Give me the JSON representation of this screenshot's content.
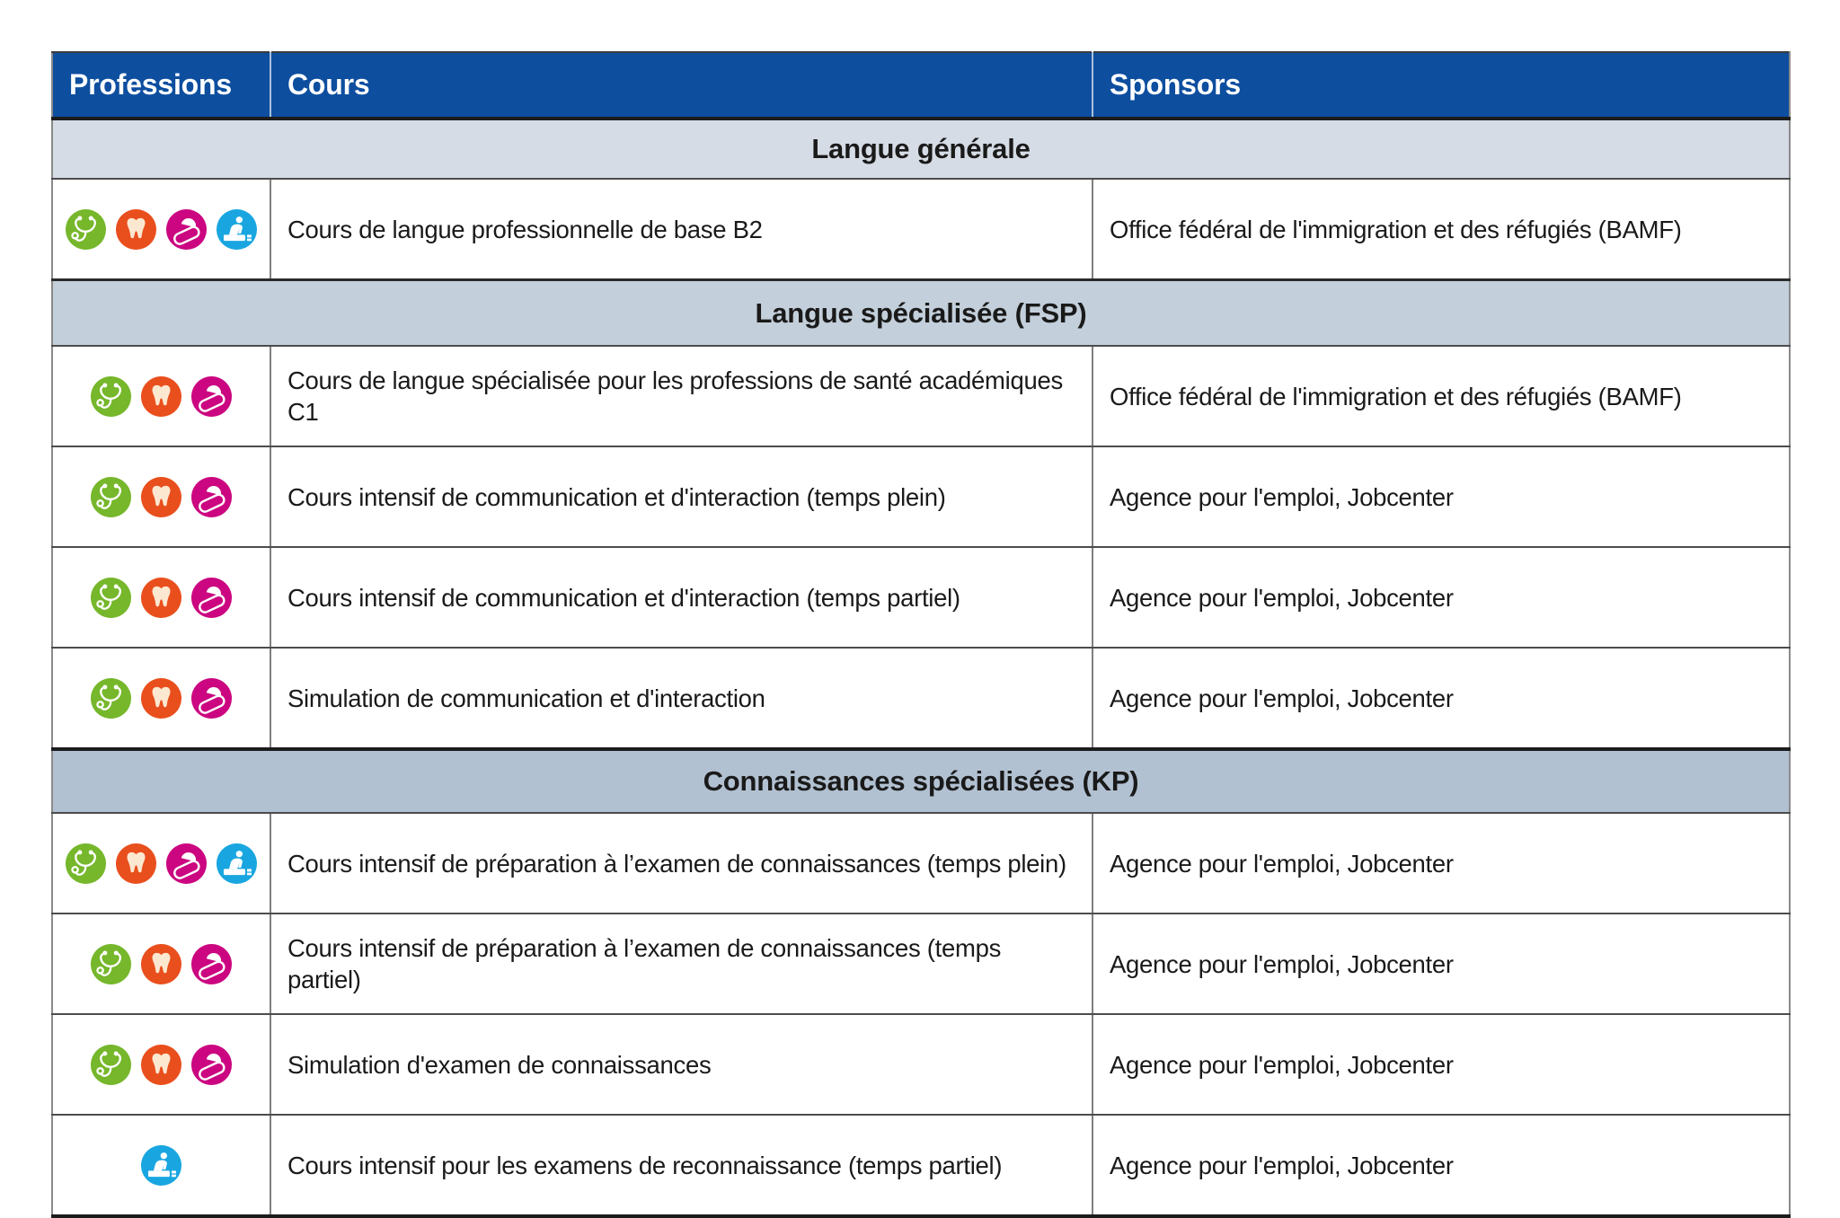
{
  "colors": {
    "header_bg": "#0d4e9f",
    "header_text": "#ffffff",
    "section1_bg": "#d6dce5",
    "section2_bg": "#c3cfda",
    "section3_bg": "#b2c1d1",
    "text": "#1a1a1a",
    "icon_green": "#76b72b",
    "icon_orange": "#e94f1d",
    "icon_magenta": "#cb0680",
    "icon_blue": "#19a6e0",
    "tooth_fill": "#fce8d1"
  },
  "table": {
    "columns": [
      "Professions",
      "Cours",
      "Sponsors"
    ],
    "sections": [
      {
        "title": "Langue générale",
        "rows": [
          {
            "professions": [
              "stethoscope-icon",
              "tooth-icon",
              "pills-icon",
              "care-icon"
            ],
            "cours": "Cours de langue professionnelle de base B2",
            "sponsor": "Office fédéral de l'immigration et des réfugiés (BAMF)"
          }
        ]
      },
      {
        "title": "Langue spécialisée (FSP)",
        "rows": [
          {
            "professions": [
              "stethoscope-icon",
              "tooth-icon",
              "pills-icon"
            ],
            "cours": "Cours de langue spécialisée pour les professions de santé académiques C1",
            "sponsor": "Office fédéral de l'immigration et des réfugiés (BAMF)"
          },
          {
            "professions": [
              "stethoscope-icon",
              "tooth-icon",
              "pills-icon"
            ],
            "cours": "Cours intensif de communication et d'interaction (temps plein)",
            "sponsor": "Agence pour l'emploi, Jobcenter"
          },
          {
            "professions": [
              "stethoscope-icon",
              "tooth-icon",
              "pills-icon"
            ],
            "cours": "Cours intensif de communication et d'interaction (temps partiel)",
            "sponsor": "Agence pour l'emploi, Jobcenter"
          },
          {
            "professions": [
              "stethoscope-icon",
              "tooth-icon",
              "pills-icon"
            ],
            "cours": "Simulation de communication et d'interaction",
            "sponsor": "Agence pour l'emploi, Jobcenter"
          }
        ]
      },
      {
        "title": "Connaissances spécialisées (KP)",
        "rows": [
          {
            "professions": [
              "stethoscope-icon",
              "tooth-icon",
              "pills-icon",
              "care-icon"
            ],
            "cours": "Cours intensif de préparation à l’examen de connaissances (temps plein)",
            "sponsor": "Agence pour l'emploi, Jobcenter"
          },
          {
            "professions": [
              "stethoscope-icon",
              "tooth-icon",
              "pills-icon"
            ],
            "cours": "Cours intensif de préparation à l’examen de connaissances (temps partiel)",
            "sponsor": "Agence pour l'emploi, Jobcenter"
          },
          {
            "professions": [
              "stethoscope-icon",
              "tooth-icon",
              "pills-icon"
            ],
            "cours": "Simulation d'examen de connaissances",
            "sponsor": "Agence pour l'emploi, Jobcenter"
          },
          {
            "professions": [
              "care-icon"
            ],
            "cours": "Cours intensif pour les examens de reconnaissance (temps partiel)",
            "sponsor": "Agence pour l'emploi, Jobcenter"
          }
        ]
      }
    ]
  }
}
